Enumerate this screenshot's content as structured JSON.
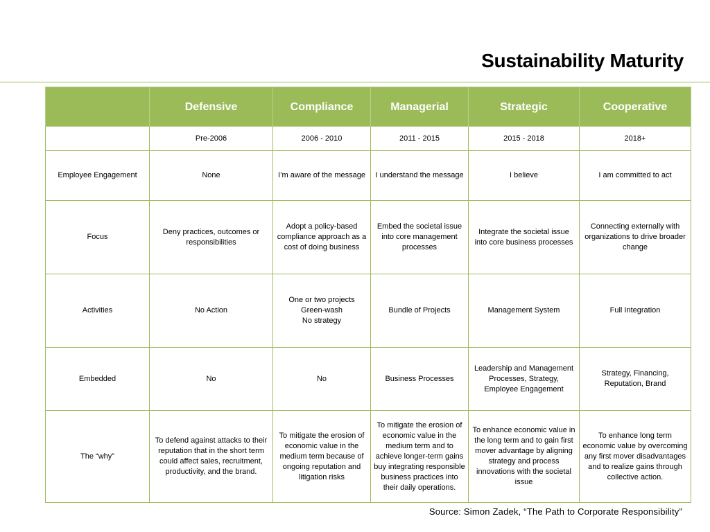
{
  "title": "Sustainability Maturity",
  "stages": [
    "Defensive",
    "Compliance",
    "Managerial",
    "Strategic",
    "Cooperative"
  ],
  "periods": [
    "Pre-2006",
    "2006 - 2010",
    "2011 - 2015",
    "2015 - 2018",
    "2018+"
  ],
  "rows": [
    {
      "label": "Employee Engagement",
      "cells": [
        "None",
        "I’m aware of the message",
        "I understand the message",
        "I believe",
        "I am committed to act"
      ]
    },
    {
      "label": "Focus",
      "cells": [
        "Deny practices, outcomes or responsibilities",
        "Adopt a policy-based compliance approach as a cost of doing business",
        "Embed the societal issue into core management processes",
        "Integrate the societal issue into core business processes",
        "Connecting externally with organizations to drive broader change"
      ]
    },
    {
      "label": "Activities",
      "cells": [
        "No Action",
        "One or two projects\nGreen-wash\nNo strategy",
        "Bundle of Projects",
        "Management System",
        "Full Integration"
      ]
    },
    {
      "label": "Embedded",
      "cells": [
        "No",
        "No",
        "Business Processes",
        "Leadership and Management Processes, Strategy, Employee Engagement",
        "Strategy, Financing, Reputation, Brand"
      ]
    },
    {
      "label": "The “why”",
      "cells": [
        "To defend against attacks to their reputation that in the short term could affect sales, recruitment, productivity, and the brand.",
        "To mitigate the erosion of economic value in the medium term because of ongoing reputation and litigation risks",
        "To mitigate the erosion of economic value in the medium term and to achieve longer-term gains buy integrating responsible business practices into their daily operations.",
        "To enhance economic value in the long term and to gain first mover advantage by aligning strategy and process innovations with the societal issue",
        "To enhance long term economic value by overcoming any first mover disadvantages and to realize gains through collective action."
      ]
    }
  ],
  "source": "Source:  Simon Zadek, “The Path to Corporate Responsibility”"
}
